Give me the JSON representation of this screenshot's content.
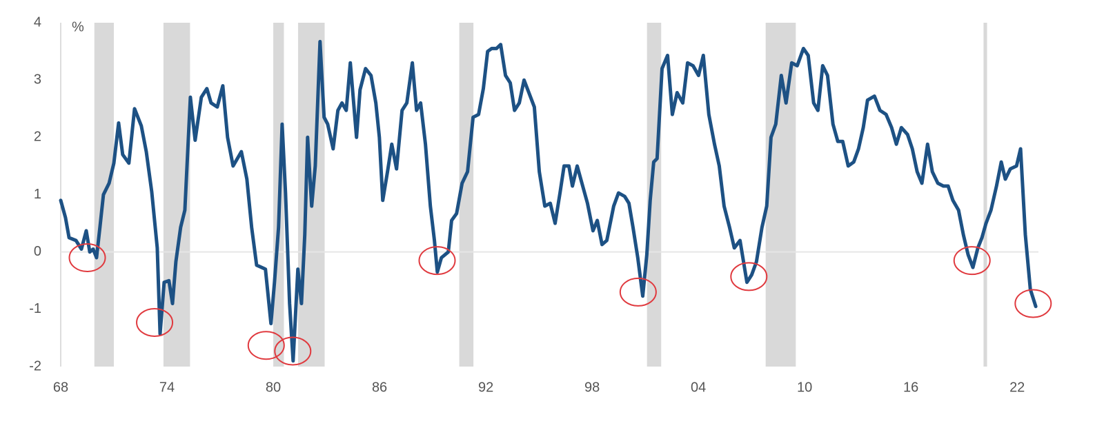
{
  "chart_data": {
    "type": "line",
    "y_unit_label": "%",
    "x": [
      1968.0,
      1968.27,
      1968.47,
      1968.86,
      1969.17,
      1969.44,
      1969.64,
      1969.83,
      1970.02,
      1970.22,
      1970.41,
      1970.73,
      1971.0,
      1971.27,
      1971.5,
      1971.85,
      1972.17,
      1972.55,
      1972.83,
      1973.14,
      1973.45,
      1973.61,
      1973.84,
      1974.11,
      1974.31,
      1974.5,
      1974.77,
      1975.01,
      1975.32,
      1975.59,
      1975.94,
      1976.25,
      1976.49,
      1976.84,
      1977.15,
      1977.42,
      1977.73,
      1978.2,
      1978.51,
      1978.78,
      1979.06,
      1979.56,
      1979.87,
      1980.07,
      1980.3,
      1980.5,
      1980.69,
      1980.92,
      1981.12,
      1981.39,
      1981.59,
      1981.78,
      1981.94,
      1982.17,
      1982.37,
      1982.64,
      1982.87,
      1983.07,
      1983.38,
      1983.65,
      1983.88,
      1984.12,
      1984.35,
      1984.7,
      1984.9,
      1985.21,
      1985.52,
      1985.79,
      1985.99,
      1986.18,
      1986.45,
      1986.69,
      1986.96,
      1987.27,
      1987.54,
      1987.85,
      1988.09,
      1988.32,
      1988.59,
      1988.87,
      1989.1,
      1989.26,
      1989.49,
      1989.88,
      1990.07,
      1990.35,
      1990.66,
      1990.97,
      1991.28,
      1991.59,
      1991.86,
      1992.1,
      1992.33,
      1992.6,
      1992.84,
      1993.11,
      1993.38,
      1993.62,
      1993.89,
      1994.16,
      1994.43,
      1994.74,
      1995.02,
      1995.33,
      1995.64,
      1995.91,
      1996.19,
      1996.42,
      1996.69,
      1996.89,
      1997.16,
      1997.47,
      1997.74,
      1998.05,
      1998.29,
      1998.56,
      1998.83,
      1999.22,
      1999.49,
      1999.84,
      2000.08,
      2000.31,
      2000.58,
      2000.86,
      2001.09,
      2001.28,
      2001.48,
      2001.67,
      2001.95,
      2002.26,
      2002.53,
      2002.8,
      2003.12,
      2003.39,
      2003.7,
      2004.01,
      2004.28,
      2004.59,
      2004.91,
      2005.18,
      2005.45,
      2005.76,
      2006.03,
      2006.35,
      2006.74,
      2007.01,
      2007.28,
      2007.59,
      2007.86,
      2008.1,
      2008.37,
      2008.68,
      2008.95,
      2009.27,
      2009.58,
      2009.93,
      2010.2,
      2010.51,
      2010.75,
      2011.02,
      2011.29,
      2011.6,
      2011.87,
      2012.15,
      2012.46,
      2012.77,
      2013.04,
      2013.31,
      2013.55,
      2013.94,
      2014.25,
      2014.6,
      2014.91,
      2015.18,
      2015.46,
      2015.81,
      2016.08,
      2016.35,
      2016.62,
      2016.94,
      2017.21,
      2017.52,
      2017.83,
      2018.1,
      2018.37,
      2018.69,
      2018.96,
      2019.23,
      2019.5,
      2019.78,
      2020.01,
      2020.24,
      2020.52,
      2020.83,
      2021.1,
      2021.33,
      2021.61,
      2021.96,
      2022.19,
      2022.46,
      2022.74,
      2023.05
    ],
    "values": [
      0.9,
      0.6,
      0.25,
      0.2,
      0.05,
      0.37,
      0,
      0.05,
      -0.1,
      0.45,
      1.0,
      1.2,
      1.55,
      2.25,
      1.7,
      1.55,
      2.5,
      2.2,
      1.75,
      1.05,
      0.07,
      -1.43,
      -0.53,
      -0.5,
      -0.9,
      -0.17,
      0.43,
      0.73,
      2.7,
      1.95,
      2.7,
      2.85,
      2.6,
      2.53,
      2.9,
      2.0,
      1.5,
      1.75,
      1.27,
      0.43,
      -0.23,
      -0.3,
      -1.25,
      -0.53,
      0.43,
      2.23,
      1.03,
      -0.9,
      -1.9,
      -0.3,
      -0.9,
      0.3,
      2.0,
      0.8,
      1.5,
      3.67,
      2.35,
      2.23,
      1.8,
      2.47,
      2.6,
      2.47,
      3.3,
      2.0,
      2.83,
      3.2,
      3.08,
      2.6,
      2.0,
      0.9,
      1.4,
      1.88,
      1.45,
      2.47,
      2.6,
      3.3,
      2.47,
      2.6,
      1.88,
      0.8,
      0.2,
      -0.35,
      -0.1,
      0,
      0.55,
      0.67,
      1.2,
      1.4,
      2.35,
      2.4,
      2.85,
      3.5,
      3.55,
      3.55,
      3.62,
      3.08,
      2.95,
      2.47,
      2.6,
      3.0,
      2.78,
      2.53,
      1.4,
      0.8,
      0.85,
      0.5,
      1.03,
      1.5,
      1.5,
      1.15,
      1.5,
      1.15,
      0.85,
      0.37,
      0.55,
      0.13,
      0.2,
      0.8,
      1.03,
      0.97,
      0.85,
      0.43,
      -0.1,
      -0.77,
      -0.05,
      0.9,
      1.57,
      1.63,
      3.2,
      3.43,
      2.4,
      2.78,
      2.6,
      3.3,
      3.25,
      3.08,
      3.43,
      2.4,
      1.88,
      1.5,
      0.8,
      0.43,
      0.07,
      0.2,
      -0.53,
      -0.4,
      -0.17,
      0.43,
      0.8,
      2.0,
      2.23,
      3.08,
      2.6,
      3.3,
      3.25,
      3.55,
      3.43,
      2.6,
      2.47,
      3.25,
      3.08,
      2.23,
      1.93,
      1.93,
      1.5,
      1.57,
      1.8,
      2.17,
      2.65,
      2.72,
      2.47,
      2.4,
      2.17,
      1.88,
      2.17,
      2.05,
      1.8,
      1.4,
      1.2,
      1.88,
      1.4,
      1.2,
      1.15,
      1.15,
      0.9,
      0.73,
      0.3,
      -0.05,
      -0.27,
      0.07,
      0.25,
      0.5,
      0.73,
      1.15,
      1.57,
      1.27,
      1.45,
      1.5,
      1.8,
      0.3,
      -0.65,
      -0.95
    ],
    "color": "#1d5184",
    "recessions": [
      [
        1969.9,
        1971.0
      ],
      [
        1973.8,
        1975.3
      ],
      [
        1980.0,
        1980.6
      ],
      [
        1981.4,
        1982.9
      ],
      [
        1990.5,
        1991.3
      ],
      [
        2001.1,
        2001.9
      ],
      [
        2007.8,
        2009.5
      ],
      [
        2020.1,
        2020.3
      ]
    ],
    "recession_color": "#d9d9d9",
    "circled": {
      "x": [
        1969.5,
        1973.3,
        1979.6,
        1981.1,
        1989.25,
        2000.6,
        2006.85,
        2019.45,
        2022.9
      ],
      "y": [
        -0.1,
        -1.23,
        -1.63,
        -1.73,
        -0.15,
        -0.7,
        -0.43,
        -0.15,
        -0.9
      ],
      "color": "#e0393e"
    },
    "reference_line": 0,
    "xlim": [
      1968,
      2023.2
    ],
    "ylim": [
      -2,
      4
    ],
    "xticks": [
      {
        "value": 1968,
        "label": "68"
      },
      {
        "value": 1974,
        "label": "74"
      },
      {
        "value": 1980,
        "label": "80"
      },
      {
        "value": 1986,
        "label": "86"
      },
      {
        "value": 1992,
        "label": "92"
      },
      {
        "value": 1998,
        "label": "98"
      },
      {
        "value": 2004,
        "label": "04"
      },
      {
        "value": 2010,
        "label": "10"
      },
      {
        "value": 2016,
        "label": "16"
      },
      {
        "value": 2022,
        "label": "22"
      }
    ],
    "yticks": [
      -2,
      -1,
      0,
      1,
      2,
      3,
      4
    ]
  }
}
